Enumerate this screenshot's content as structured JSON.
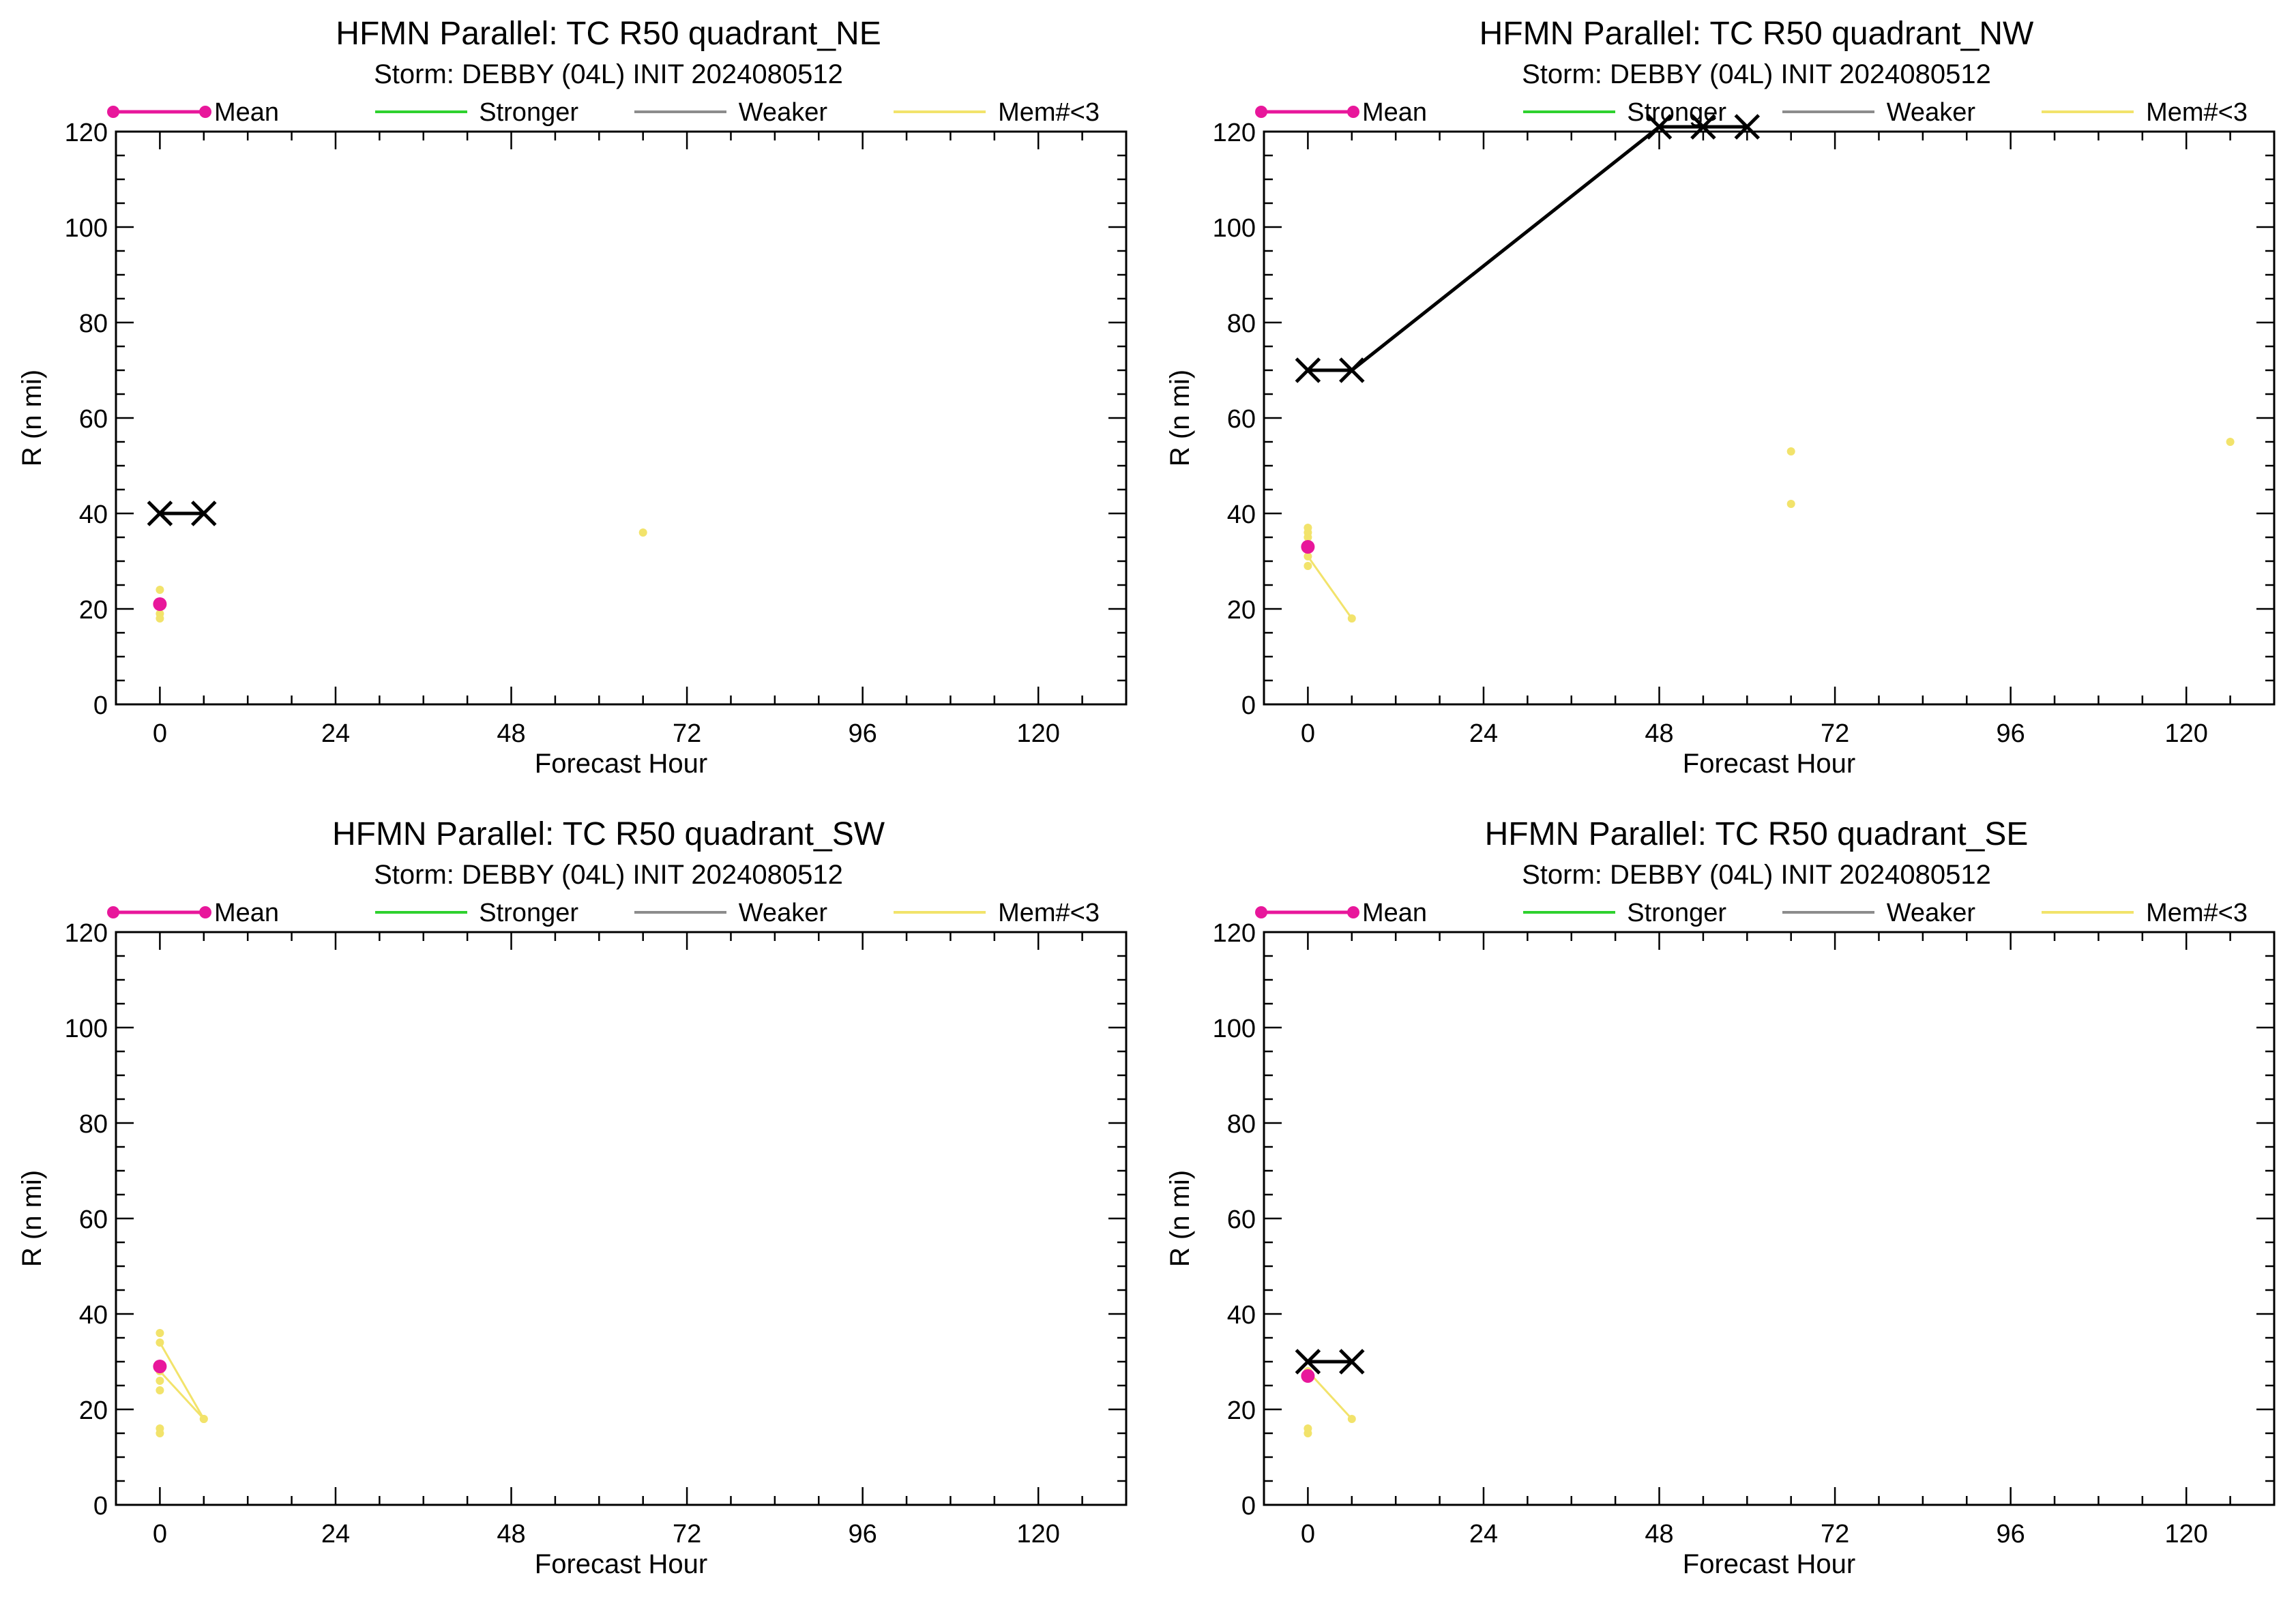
{
  "legend": {
    "mean": "Mean",
    "stronger": "Stronger",
    "weaker": "Weaker",
    "mem": "Mem#<3"
  },
  "colors": {
    "mean": "#e8179b",
    "stronger": "#2ed12e",
    "weaker": "#8c8c8c",
    "mem": "#f2e36b",
    "best_track": "#000000"
  },
  "chart_data": [
    {
      "type": "scatter",
      "title": "HFMN Parallel: TC  R50 quadrant_NE",
      "subtitle": "Storm: DEBBY (04L) INIT 2024080512",
      "xlabel": "Forecast Hour",
      "ylabel": "R (n mi)",
      "xlim": [
        -6,
        132
      ],
      "ylim": [
        0,
        120
      ],
      "xticks": [
        0,
        24,
        48,
        72,
        96,
        120
      ],
      "yticks": [
        0,
        20,
        40,
        60,
        80,
        100,
        120
      ],
      "best_track": [
        [
          0,
          40
        ],
        [
          6,
          40
        ]
      ],
      "mean": [
        [
          0,
          21
        ]
      ],
      "members": {
        "lines": [],
        "points": [
          [
            0,
            24
          ],
          [
            0,
            19
          ],
          [
            0,
            18
          ],
          [
            66,
            36
          ]
        ]
      }
    },
    {
      "type": "scatter",
      "title": "HFMN Parallel: TC  R50 quadrant_NW",
      "subtitle": "Storm: DEBBY (04L) INIT 2024080512",
      "xlabel": "Forecast Hour",
      "ylabel": "R (n mi)",
      "xlim": [
        -6,
        132
      ],
      "ylim": [
        0,
        120
      ],
      "xticks": [
        0,
        24,
        48,
        72,
        96,
        120
      ],
      "yticks": [
        0,
        20,
        40,
        60,
        80,
        100,
        120
      ],
      "best_track": [
        [
          0,
          70
        ],
        [
          6,
          70
        ],
        [
          48,
          121
        ],
        [
          54,
          121
        ],
        [
          60,
          121
        ]
      ],
      "mean": [
        [
          0,
          33
        ]
      ],
      "members": {
        "lines": [
          [
            [
              0,
              31
            ],
            [
              6,
              18
            ]
          ]
        ],
        "points": [
          [
            0,
            37
          ],
          [
            0,
            36
          ],
          [
            0,
            35
          ],
          [
            0,
            29
          ],
          [
            66,
            53
          ],
          [
            66,
            42
          ],
          [
            126,
            55
          ]
        ]
      }
    },
    {
      "type": "scatter",
      "title": "HFMN Parallel: TC  R50 quadrant_SW",
      "subtitle": "Storm: DEBBY (04L) INIT 2024080512",
      "xlabel": "Forecast Hour",
      "ylabel": "R (n mi)",
      "xlim": [
        -6,
        132
      ],
      "ylim": [
        0,
        120
      ],
      "xticks": [
        0,
        24,
        48,
        72,
        96,
        120
      ],
      "yticks": [
        0,
        20,
        40,
        60,
        80,
        100,
        120
      ],
      "best_track": [],
      "mean": [
        [
          0,
          29
        ]
      ],
      "members": {
        "lines": [
          [
            [
              0,
              34
            ],
            [
              6,
              18
            ]
          ],
          [
            [
              0,
              28
            ],
            [
              6,
              18
            ]
          ]
        ],
        "points": [
          [
            0,
            36
          ],
          [
            0,
            26
          ],
          [
            0,
            24
          ],
          [
            0,
            16
          ],
          [
            0,
            15
          ]
        ]
      }
    },
    {
      "type": "scatter",
      "title": "HFMN Parallel: TC  R50 quadrant_SE",
      "subtitle": "Storm: DEBBY (04L) INIT 2024080512",
      "xlabel": "Forecast Hour",
      "ylabel": "R (n mi)",
      "xlim": [
        -6,
        132
      ],
      "ylim": [
        0,
        120
      ],
      "xticks": [
        0,
        24,
        48,
        72,
        96,
        120
      ],
      "yticks": [
        0,
        20,
        40,
        60,
        80,
        100,
        120
      ],
      "best_track": [
        [
          0,
          30
        ],
        [
          6,
          30
        ]
      ],
      "mean": [
        [
          0,
          27
        ]
      ],
      "members": {
        "lines": [
          [
            [
              0,
              28
            ],
            [
              6,
              18
            ]
          ]
        ],
        "points": [
          [
            0,
            16
          ],
          [
            0,
            15
          ]
        ]
      }
    }
  ]
}
